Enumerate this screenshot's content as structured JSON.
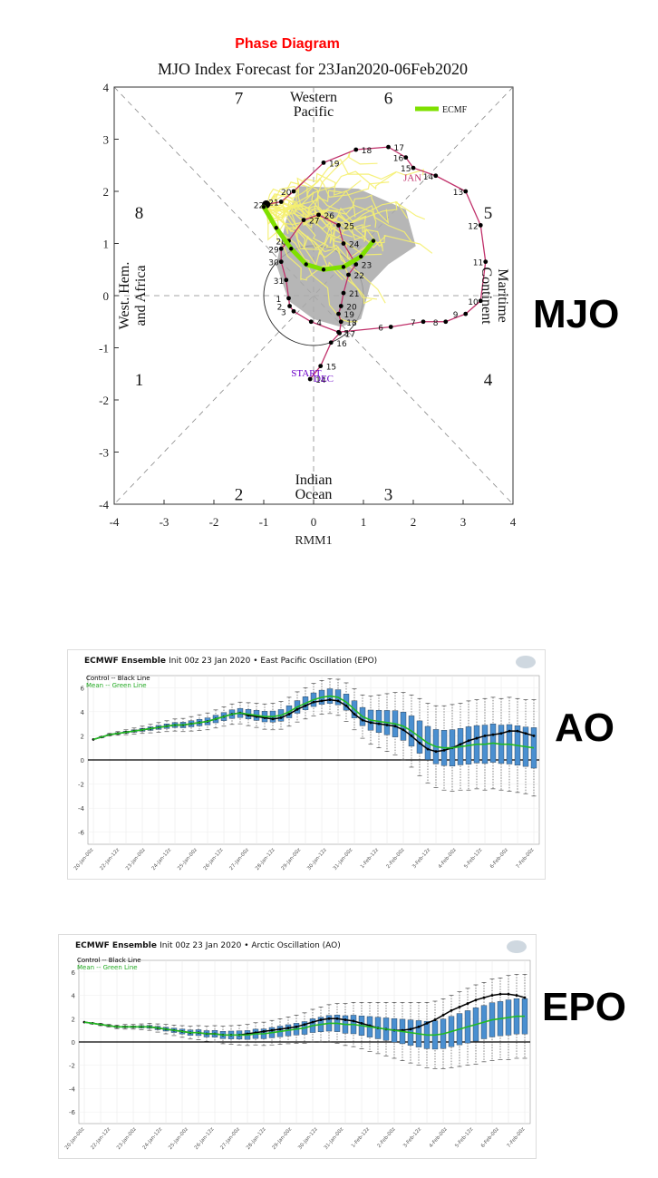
{
  "labels": {
    "mjo": "MJO",
    "ao": "AO",
    "epo": "EPO"
  },
  "colors": {
    "ecmf": "#7fe000",
    "track": "#c0306a",
    "ensemble_member": "#f5ef70",
    "spread_shade": "#a9a9a9",
    "box_fill": "#4a8fd0",
    "mean_line": "#22bb22",
    "control_line": "#000000",
    "title_red": "#ff0000"
  },
  "chart_data": [
    {
      "type": "scatter",
      "title": "Phase Diagram",
      "subtitle": "MJO Index Forecast for 23Jan2020-06Feb2020",
      "xlabel": "RMM1",
      "ylabel": "",
      "xlim": [
        -4,
        4
      ],
      "ylim": [
        -4,
        4
      ],
      "xticks": [
        "-4",
        "-3",
        "-2",
        "-1",
        "0",
        "1",
        "2",
        "3",
        "4"
      ],
      "yticks": [
        "4",
        "3",
        "2",
        "1",
        "0",
        "-1",
        "-2",
        "-3",
        "-4"
      ],
      "phase_numbers": [
        "1",
        "2",
        "3",
        "4",
        "5",
        "6",
        "7",
        "8"
      ],
      "region_labels": {
        "top": [
          "Western",
          "Pacific"
        ],
        "bottom": [
          "Indian",
          "Ocean"
        ],
        "left": [
          "West. Hem.",
          "and Africa"
        ],
        "right": [
          "Maritime",
          "Continent"
        ]
      },
      "legend": [
        "ECMF"
      ],
      "markers": {
        "start": "START",
        "dec": "DEC",
        "jan": "JAN"
      },
      "observed_track": [
        {
          "label": "14",
          "x": -0.07,
          "y": -1.6
        },
        {
          "label": "15",
          "x": 0.14,
          "y": -1.35
        },
        {
          "label": "16",
          "x": 0.35,
          "y": -0.9
        },
        {
          "label": "17",
          "x": 0.52,
          "y": -0.72
        },
        {
          "label": "18",
          "x": 0.55,
          "y": -0.5
        },
        {
          "label": "19",
          "x": 0.5,
          "y": -0.35
        },
        {
          "label": "20",
          "x": 0.55,
          "y": -0.2
        },
        {
          "label": "21",
          "x": 0.6,
          "y": 0.05
        },
        {
          "label": "22",
          "x": 0.7,
          "y": 0.4
        },
        {
          "label": "23",
          "x": 0.85,
          "y": 0.6
        },
        {
          "label": "24",
          "x": 0.6,
          "y": 1.0
        },
        {
          "label": "25",
          "x": 0.5,
          "y": 1.35
        },
        {
          "label": "26",
          "x": 0.1,
          "y": 1.55
        },
        {
          "label": "27",
          "x": -0.2,
          "y": 1.45
        },
        {
          "label": "28",
          "x": -0.5,
          "y": 1.05
        },
        {
          "label": "29",
          "x": -0.65,
          "y": 0.9
        },
        {
          "label": "30",
          "x": -0.65,
          "y": 0.65
        },
        {
          "label": "31",
          "x": -0.55,
          "y": 0.3
        },
        {
          "label": "1",
          "x": -0.5,
          "y": -0.05
        },
        {
          "label": "2",
          "x": -0.48,
          "y": -0.2
        },
        {
          "label": "3",
          "x": -0.4,
          "y": -0.3
        },
        {
          "label": "4",
          "x": -0.05,
          "y": -0.5
        },
        {
          "label": "5",
          "x": 0.5,
          "y": -0.7
        },
        {
          "label": "6",
          "x": 1.55,
          "y": -0.6
        },
        {
          "label": "7",
          "x": 2.2,
          "y": -0.5
        },
        {
          "label": "8",
          "x": 2.65,
          "y": -0.5
        },
        {
          "label": "9",
          "x": 3.05,
          "y": -0.35
        },
        {
          "label": "10",
          "x": 3.35,
          "y": -0.1
        },
        {
          "label": "11",
          "x": 3.45,
          "y": 0.65
        },
        {
          "label": "12",
          "x": 3.35,
          "y": 1.35
        },
        {
          "label": "13",
          "x": 3.05,
          "y": 2.0
        },
        {
          "label": "14",
          "x": 2.45,
          "y": 2.3
        },
        {
          "label": "15",
          "x": 2.0,
          "y": 2.45
        },
        {
          "label": "16",
          "x": 1.85,
          "y": 2.65
        },
        {
          "label": "17",
          "x": 1.5,
          "y": 2.85
        },
        {
          "label": "18",
          "x": 0.85,
          "y": 2.8
        },
        {
          "label": "19",
          "x": 0.2,
          "y": 2.55
        },
        {
          "label": "20",
          "x": -0.4,
          "y": 2.0
        },
        {
          "label": "21",
          "x": -0.65,
          "y": 1.8
        },
        {
          "label": "22",
          "x": -0.95,
          "y": 1.75
        }
      ],
      "ecmf_mean": [
        {
          "x": -1.0,
          "y": 1.7
        },
        {
          "x": -0.75,
          "y": 1.3
        },
        {
          "x": -0.45,
          "y": 0.9
        },
        {
          "x": -0.15,
          "y": 0.6
        },
        {
          "x": 0.2,
          "y": 0.5
        },
        {
          "x": 0.6,
          "y": 0.55
        },
        {
          "x": 0.95,
          "y": 0.75
        },
        {
          "x": 1.2,
          "y": 1.05
        }
      ]
    },
    {
      "type": "line",
      "title": "ECMWF Ensemble",
      "subtitle": "Init 00z 23 Jan 2020 • East Pacific Oscillation (EPO)",
      "legend": [
        "Control -- Black Line",
        "Mean -- Green Line"
      ],
      "ylim": [
        -7,
        7
      ],
      "yticks": [
        "6",
        "4",
        "2",
        "0",
        "-2",
        "-4",
        "-6"
      ],
      "x_tick_labels": [
        "20-Jan-00z",
        "22-Jan-12z",
        "23-Jan-00z",
        "24-Jan-12z",
        "25-Jan-00z",
        "26-Jan-12z",
        "27-Jan-00z",
        "28-Jan-12z",
        "29-Jan-00z",
        "30-Jan-12z",
        "31-Jan-00z",
        "1-Feb-12z",
        "2-Feb-00z",
        "3-Feb-12z",
        "4-Feb-00z",
        "5-Feb-12z",
        "6-Feb-00z",
        "7-Feb-00z"
      ],
      "mean": [
        1.7,
        1.9,
        2.1,
        2.2,
        2.3,
        2.4,
        2.5,
        2.6,
        2.7,
        2.8,
        2.9,
        2.9,
        3.0,
        3.1,
        3.2,
        3.4,
        3.6,
        3.8,
        3.9,
        3.8,
        3.7,
        3.6,
        3.6,
        3.7,
        4.0,
        4.4,
        4.7,
        5.0,
        5.2,
        5.3,
        5.2,
        4.8,
        4.2,
        3.6,
        3.3,
        3.2,
        3.1,
        3.0,
        2.8,
        2.4,
        1.9,
        1.4,
        1.1,
        1.0,
        1.0,
        1.1,
        1.2,
        1.3,
        1.3,
        1.4,
        1.3,
        1.3,
        1.2,
        1.1,
        1.0
      ],
      "control": [
        1.7,
        1.9,
        2.1,
        2.2,
        2.3,
        2.4,
        2.5,
        2.6,
        2.7,
        2.8,
        2.9,
        2.9,
        3.0,
        3.1,
        3.2,
        3.4,
        3.6,
        3.8,
        3.9,
        3.7,
        3.6,
        3.5,
        3.4,
        3.5,
        3.8,
        4.2,
        4.5,
        4.8,
        4.9,
        5.0,
        4.9,
        4.5,
        3.8,
        3.3,
        3.1,
        3.0,
        2.9,
        2.8,
        2.5,
        2.0,
        1.4,
        0.9,
        0.7,
        0.8,
        1.0,
        1.3,
        1.6,
        1.8,
        2.0,
        2.1,
        2.2,
        2.4,
        2.4,
        2.2,
        2.0
      ],
      "spread": [
        0.0,
        0.05,
        0.1,
        0.15,
        0.2,
        0.25,
        0.3,
        0.35,
        0.4,
        0.45,
        0.5,
        0.55,
        0.6,
        0.65,
        0.7,
        0.75,
        0.8,
        0.85,
        0.9,
        0.95,
        1.0,
        1.05,
        1.1,
        1.15,
        1.2,
        1.25,
        1.3,
        1.35,
        1.4,
        1.45,
        1.5,
        1.6,
        1.7,
        1.8,
        2.0,
        2.2,
        2.4,
        2.6,
        2.8,
        3.0,
        3.2,
        3.3,
        3.4,
        3.5,
        3.6,
        3.6,
        3.7,
        3.7,
        3.8,
        3.8,
        3.8,
        3.9,
        3.9,
        3.9,
        4.0
      ]
    },
    {
      "type": "line",
      "title": "ECMWF Ensemble",
      "subtitle": "Init 00z 23 Jan 2020 • Arctic Oscillation (AO)",
      "legend": [
        "Control -- Black Line",
        "Mean -- Green Line"
      ],
      "ylim": [
        -7,
        7
      ],
      "yticks": [
        "6",
        "4",
        "2",
        "0",
        "-2",
        "-4",
        "-6"
      ],
      "x_tick_labels": [
        "20-Jan-00z",
        "22-Jan-12z",
        "23-Jan-00z",
        "24-Jan-12z",
        "25-Jan-00z",
        "26-Jan-12z",
        "27-Jan-00z",
        "28-Jan-12z",
        "29-Jan-00z",
        "30-Jan-12z",
        "31-Jan-00z",
        "1-Feb-12z",
        "2-Feb-00z",
        "3-Feb-12z",
        "4-Feb-00z",
        "5-Feb-12z",
        "6-Feb-00z",
        "7-Feb-00z"
      ],
      "mean": [
        1.7,
        1.6,
        1.5,
        1.4,
        1.3,
        1.3,
        1.3,
        1.3,
        1.3,
        1.2,
        1.1,
        1.0,
        0.9,
        0.8,
        0.8,
        0.7,
        0.7,
        0.6,
        0.6,
        0.6,
        0.6,
        0.7,
        0.7,
        0.8,
        0.9,
        1.0,
        1.1,
        1.2,
        1.4,
        1.5,
        1.6,
        1.6,
        1.5,
        1.5,
        1.4,
        1.3,
        1.2,
        1.1,
        1.0,
        0.9,
        0.8,
        0.7,
        0.6,
        0.6,
        0.7,
        0.9,
        1.1,
        1.3,
        1.5,
        1.7,
        1.9,
        2.0,
        2.1,
        2.2,
        2.2
      ],
      "control": [
        1.7,
        1.6,
        1.5,
        1.4,
        1.3,
        1.3,
        1.3,
        1.3,
        1.3,
        1.2,
        1.1,
        1.0,
        0.9,
        0.8,
        0.8,
        0.7,
        0.7,
        0.6,
        0.6,
        0.6,
        0.7,
        0.8,
        0.9,
        1.0,
        1.1,
        1.2,
        1.3,
        1.5,
        1.7,
        1.9,
        2.0,
        2.0,
        1.9,
        1.8,
        1.6,
        1.4,
        1.2,
        1.1,
        1.0,
        1.0,
        1.1,
        1.3,
        1.6,
        1.9,
        2.3,
        2.7,
        3.0,
        3.3,
        3.6,
        3.8,
        4.0,
        4.1,
        4.1,
        4.0,
        3.8
      ],
      "spread": [
        0.0,
        0.05,
        0.1,
        0.1,
        0.15,
        0.2,
        0.2,
        0.25,
        0.3,
        0.35,
        0.4,
        0.45,
        0.5,
        0.55,
        0.6,
        0.65,
        0.7,
        0.75,
        0.8,
        0.85,
        0.9,
        0.95,
        1.0,
        1.05,
        1.1,
        1.15,
        1.2,
        1.3,
        1.4,
        1.5,
        1.6,
        1.7,
        1.8,
        1.9,
        2.0,
        2.1,
        2.2,
        2.3,
        2.4,
        2.5,
        2.6,
        2.7,
        2.8,
        2.9,
        3.0,
        3.1,
        3.2,
        3.3,
        3.4,
        3.4,
        3.5,
        3.5,
        3.6,
        3.6,
        3.6
      ]
    }
  ]
}
